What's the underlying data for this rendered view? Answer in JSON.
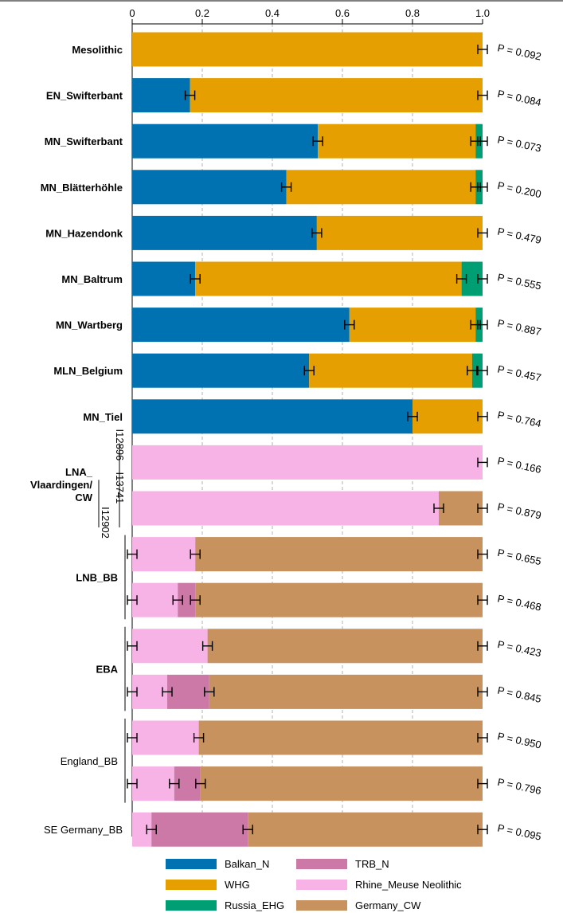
{
  "chart_data": {
    "type": "bar",
    "orientation": "horizontal-stacked",
    "xlim": [
      0,
      1.0
    ],
    "xticks": [
      "0",
      "0.2",
      "0.4",
      "0.6",
      "0.8",
      "1.0"
    ],
    "grid": "vertical-dashed",
    "legend_position": "bottom",
    "components": [
      {
        "name": "Balkan_N",
        "color": "#0072b2"
      },
      {
        "name": "WHG",
        "color": "#e69f00"
      },
      {
        "name": "Russia_EHG",
        "color": "#009e73"
      },
      {
        "name": "TRB_N",
        "color": "#cc79a7"
      },
      {
        "name": "Rhine_Meuse Neolithic",
        "color": "#f7b3e6"
      },
      {
        "name": "Germany_CW",
        "color": "#c8925e"
      }
    ],
    "groups": [
      {
        "label": "Mesolithic",
        "bold": true,
        "sublabels": []
      },
      {
        "label": "EN_Swifterbant",
        "bold": true,
        "sublabels": []
      },
      {
        "label": "MN_Swifterbant",
        "bold": true,
        "sublabels": []
      },
      {
        "label": "MN_Blätterhöhle",
        "bold": true,
        "sublabels": []
      },
      {
        "label": "MN_Hazendonk",
        "bold": true,
        "sublabels": []
      },
      {
        "label": "MN_Baltrum",
        "bold": true,
        "sublabels": []
      },
      {
        "label": "MN_Wartberg",
        "bold": true,
        "sublabels": []
      },
      {
        "label": "MLN_Belgium",
        "bold": true,
        "sublabels": []
      },
      {
        "label": "MN_Tiel",
        "bold": true,
        "sublabels": []
      },
      {
        "label": "LNA_ Vlaardingen/ CW",
        "bold": true,
        "sublabels": [
          "I12896",
          "I13741",
          "I12902"
        ]
      },
      {
        "label": "LNB_BB",
        "bold": true,
        "sublabels": []
      },
      {
        "label": "EBA",
        "bold": true,
        "sublabels": []
      },
      {
        "label": "England_BB",
        "bold": false,
        "sublabels": []
      },
      {
        "label": "SE Germany_BB",
        "bold": false,
        "sublabels": []
      }
    ],
    "bars": [
      {
        "group": 0,
        "p": "P = 0.092",
        "segments": [
          {
            "c": 1,
            "v": 1.0
          }
        ],
        "errors": [
          1.0
        ]
      },
      {
        "group": 1,
        "p": "P = 0.084",
        "segments": [
          {
            "c": 0,
            "v": 0.165
          },
          {
            "c": 1,
            "v": 0.835
          }
        ],
        "errors": [
          0.165,
          1.0
        ]
      },
      {
        "group": 2,
        "p": "P = 0.073",
        "segments": [
          {
            "c": 0,
            "v": 0.53
          },
          {
            "c": 1,
            "v": 0.45
          },
          {
            "c": 2,
            "v": 0.02
          }
        ],
        "errors": [
          0.53,
          0.98,
          1.0
        ]
      },
      {
        "group": 3,
        "p": "P = 0.200",
        "segments": [
          {
            "c": 0,
            "v": 0.44
          },
          {
            "c": 1,
            "v": 0.54
          },
          {
            "c": 2,
            "v": 0.02
          }
        ],
        "errors": [
          0.44,
          0.98,
          1.0
        ]
      },
      {
        "group": 4,
        "p": "P = 0.479",
        "segments": [
          {
            "c": 0,
            "v": 0.527
          },
          {
            "c": 1,
            "v": 0.473
          }
        ],
        "errors": [
          0.527,
          1.0
        ]
      },
      {
        "group": 5,
        "p": "P = 0.555",
        "segments": [
          {
            "c": 0,
            "v": 0.18
          },
          {
            "c": 1,
            "v": 0.76
          },
          {
            "c": 2,
            "v": 0.06
          }
        ],
        "errors": [
          0.18,
          0.94,
          1.0
        ]
      },
      {
        "group": 6,
        "p": "P = 0.887",
        "segments": [
          {
            "c": 0,
            "v": 0.62
          },
          {
            "c": 1,
            "v": 0.36
          },
          {
            "c": 2,
            "v": 0.02
          }
        ],
        "errors": [
          0.62,
          0.98,
          1.0
        ]
      },
      {
        "group": 7,
        "p": "P = 0.457",
        "segments": [
          {
            "c": 0,
            "v": 0.505
          },
          {
            "c": 1,
            "v": 0.465
          },
          {
            "c": 2,
            "v": 0.03
          }
        ],
        "errors": [
          0.505,
          0.97,
          1.0
        ]
      },
      {
        "group": 8,
        "p": "P = 0.764",
        "segments": [
          {
            "c": 0,
            "v": 0.8
          },
          {
            "c": 1,
            "v": 0.2
          }
        ],
        "errors": [
          0.8,
          1.0
        ]
      },
      {
        "group": 9,
        "p": "P = 0.166",
        "segments": [
          {
            "c": 4,
            "v": 1.0
          }
        ],
        "errors": [
          1.0
        ]
      },
      {
        "group": 9,
        "p": "P = 0.879",
        "segments": [
          {
            "c": 4,
            "v": 0.875
          },
          {
            "c": 5,
            "v": 0.125
          }
        ],
        "errors": [
          0.875,
          1.0
        ]
      },
      {
        "group": 10,
        "p": "P = 0.655",
        "segments": [
          {
            "c": 4,
            "v": 0.18
          },
          {
            "c": 5,
            "v": 0.82
          }
        ],
        "errors": [
          0.0,
          0.18,
          1.0
        ]
      },
      {
        "group": 10,
        "p": "P = 0.468",
        "segments": [
          {
            "c": 4,
            "v": 0.13
          },
          {
            "c": 3,
            "v": 0.05
          },
          {
            "c": 5,
            "v": 0.82
          }
        ],
        "errors": [
          0.0,
          0.13,
          0.18,
          1.0
        ]
      },
      {
        "group": 11,
        "p": "P = 0.423",
        "segments": [
          {
            "c": 4,
            "v": 0.215
          },
          {
            "c": 5,
            "v": 0.785
          }
        ],
        "errors": [
          0.0,
          0.215,
          1.0
        ]
      },
      {
        "group": 11,
        "p": "P = 0.845",
        "segments": [
          {
            "c": 4,
            "v": 0.1
          },
          {
            "c": 3,
            "v": 0.12
          },
          {
            "c": 5,
            "v": 0.78
          }
        ],
        "errors": [
          0.0,
          0.1,
          0.22,
          1.0
        ]
      },
      {
        "group": 12,
        "p": "P = 0.950",
        "segments": [
          {
            "c": 4,
            "v": 0.19
          },
          {
            "c": 5,
            "v": 0.81
          }
        ],
        "errors": [
          0.0,
          0.19,
          1.0
        ]
      },
      {
        "group": 12,
        "p": "P = 0.796",
        "segments": [
          {
            "c": 4,
            "v": 0.12
          },
          {
            "c": 3,
            "v": 0.075
          },
          {
            "c": 5,
            "v": 0.805
          }
        ],
        "errors": [
          0.0,
          0.12,
          0.195,
          1.0
        ]
      },
      {
        "group": 13,
        "p": "P = 0.095",
        "segments": [
          {
            "c": 4,
            "v": 0.055
          },
          {
            "c": 3,
            "v": 0.275
          },
          {
            "c": 5,
            "v": 0.67
          }
        ],
        "errors": [
          0.055,
          0.33,
          1.0
        ]
      }
    ]
  }
}
